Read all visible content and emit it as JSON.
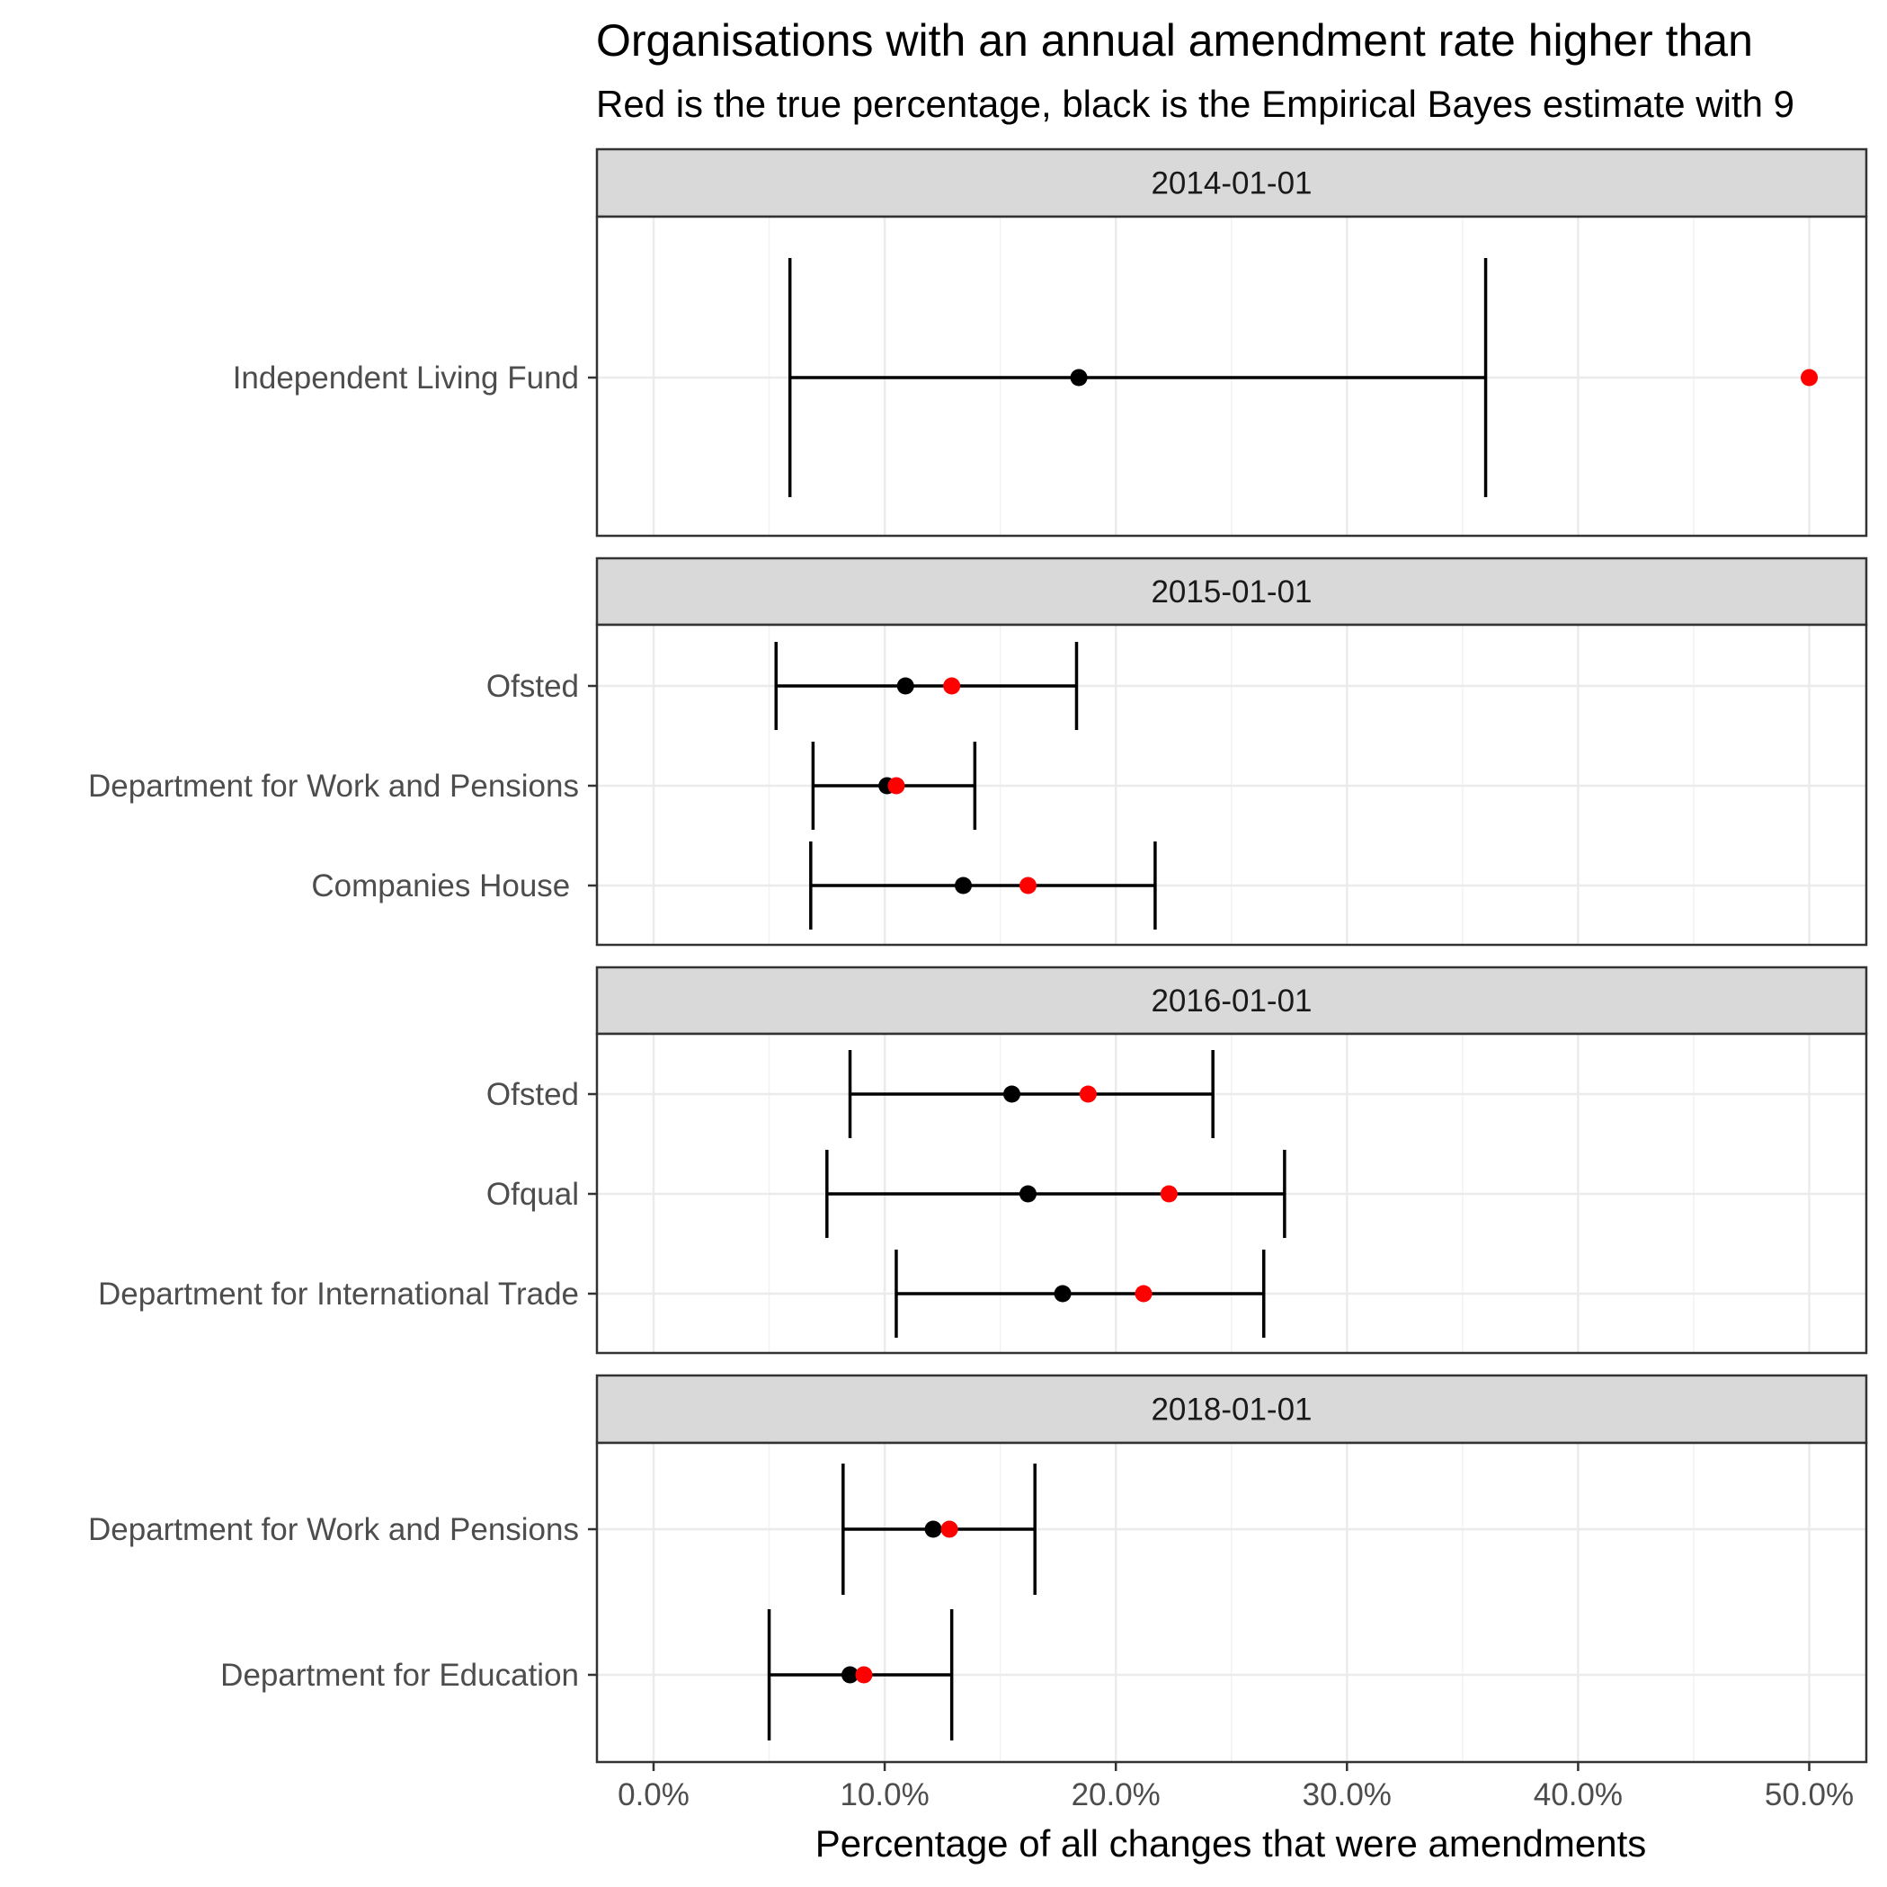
{
  "chart_data": {
    "type": "scatter",
    "title": "Organisations with an annual amendment rate higher than",
    "subtitle": "Red is the true percentage, black is the Empirical Bayes estimate with 9",
    "xlabel": "Percentage of all changes that were amendments",
    "xlim": [
      -2.4,
      52.4
    ],
    "x_ticks": [
      0,
      10,
      20,
      30,
      40,
      50
    ],
    "x_tick_labels": [
      "0.0%",
      "10.0%",
      "20.0%",
      "30.0%",
      "40.0%",
      "50.0%"
    ],
    "grid": true,
    "colors": {
      "true_point": "#ff0000",
      "estimate": "#000000"
    },
    "panels": [
      {
        "facet": "2014-01-01",
        "rows": [
          {
            "org": "Independent Living Fund",
            "estimate": 18.4,
            "true": 50.0,
            "lower": 5.9,
            "upper": 36.0
          }
        ]
      },
      {
        "facet": "2015-01-01",
        "rows": [
          {
            "org": "Ofsted",
            "estimate": 10.9,
            "true": 12.9,
            "lower": 5.3,
            "upper": 18.3
          },
          {
            "org": "Department for Work and Pensions",
            "estimate": 10.1,
            "true": 10.5,
            "lower": 6.9,
            "upper": 13.9
          },
          {
            "org": "Companies House ",
            "estimate": 13.4,
            "true": 16.2,
            "lower": 6.8,
            "upper": 21.7
          }
        ]
      },
      {
        "facet": "2016-01-01",
        "rows": [
          {
            "org": "Ofsted",
            "estimate": 15.5,
            "true": 18.8,
            "lower": 8.5,
            "upper": 24.2
          },
          {
            "org": "Ofqual",
            "estimate": 16.2,
            "true": 22.3,
            "lower": 7.5,
            "upper": 27.3
          },
          {
            "org": "Department for International Trade",
            "estimate": 17.7,
            "true": 21.2,
            "lower": 10.5,
            "upper": 26.4
          }
        ]
      },
      {
        "facet": "2018-01-01",
        "rows": [
          {
            "org": "Department for Work and Pensions",
            "estimate": 12.1,
            "true": 12.8,
            "lower": 8.2,
            "upper": 16.5
          },
          {
            "org": "Department for Education",
            "estimate": 8.5,
            "true": 9.1,
            "lower": 5.0,
            "upper": 12.9
          }
        ]
      }
    ]
  }
}
